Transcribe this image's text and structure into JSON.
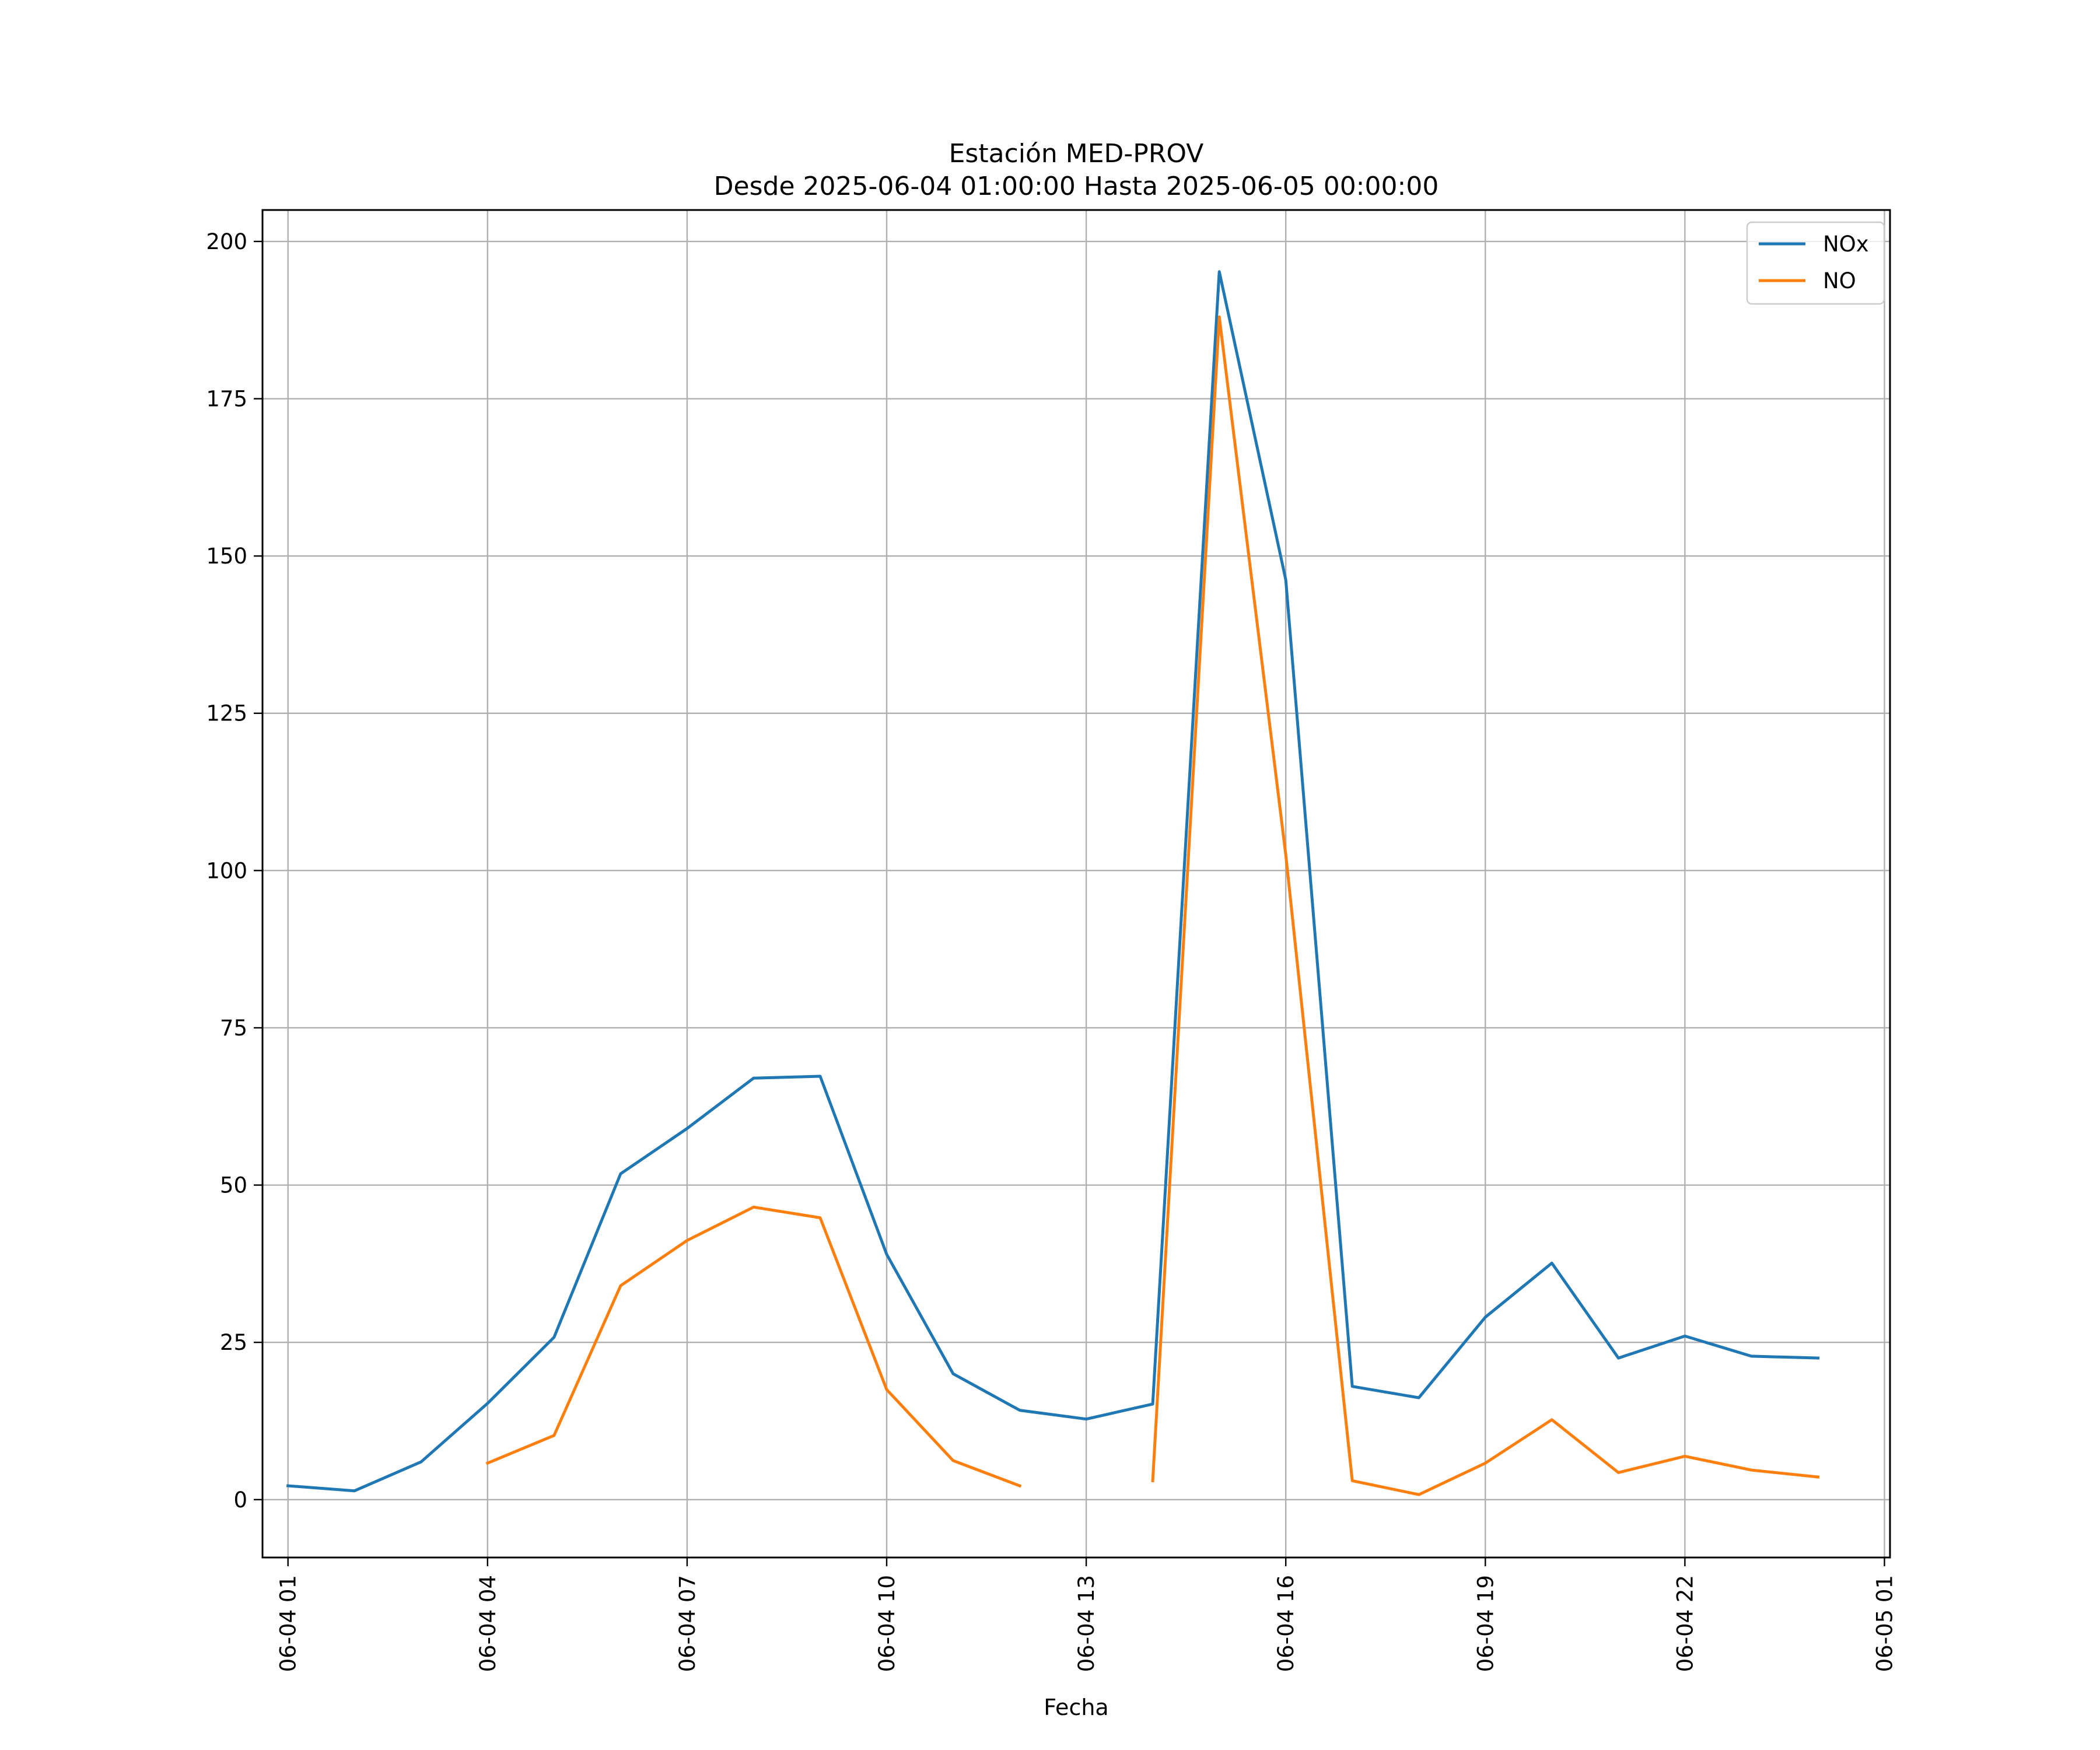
{
  "chart_data": {
    "type": "line",
    "title": [
      "Estación MED-PROV",
      "Desde 2025-06-04 01:00:00 Hasta 2025-06-05 00:00:00"
    ],
    "xlabel": "Fecha",
    "ylabel": "",
    "x": [
      "06-04 01",
      "06-04 02",
      "06-04 03",
      "06-04 04",
      "06-04 05",
      "06-04 06",
      "06-04 07",
      "06-04 08",
      "06-04 09",
      "06-04 10",
      "06-04 11",
      "06-04 12",
      "06-04 13",
      "06-04 14",
      "06-04 15",
      "06-04 16",
      "06-04 17",
      "06-04 18",
      "06-04 19",
      "06-04 20",
      "06-04 21",
      "06-04 22",
      "06-04 23",
      "06-05 00"
    ],
    "series": [
      {
        "name": "NOx",
        "color": "#1f77b4",
        "values": [
          2.2,
          1.4,
          6.0,
          15.3,
          25.8,
          51.8,
          59.0,
          67.0,
          67.3,
          39.0,
          20.0,
          14.2,
          12.8,
          15.2,
          195.2,
          146.2,
          18.0,
          16.2,
          29.0,
          37.6,
          22.5,
          26.0,
          22.8,
          22.5
        ]
      },
      {
        "name": "NO",
        "color": "#ff7f0e",
        "values": [
          null,
          null,
          null,
          5.8,
          10.2,
          34.0,
          41.2,
          46.5,
          44.8,
          17.5,
          6.2,
          2.2,
          null,
          3.0,
          188.0,
          102.5,
          3.0,
          0.8,
          5.8,
          12.7,
          4.3,
          6.9,
          4.7,
          3.6
        ]
      }
    ],
    "xticks": [
      "06-04 01",
      "06-04 04",
      "06-04 07",
      "06-04 10",
      "06-04 13",
      "06-04 16",
      "06-04 19",
      "06-04 22",
      "06-05 01"
    ],
    "yticks": [
      "0",
      "25",
      "50",
      "75",
      "100",
      "125",
      "150",
      "175",
      "200"
    ],
    "xlim": [
      "2025-06-04 00:37",
      "2025-06-05 01:05"
    ],
    "ylim": [
      -9.2,
      205.0
    ],
    "grid": true,
    "legend": "top-right"
  }
}
